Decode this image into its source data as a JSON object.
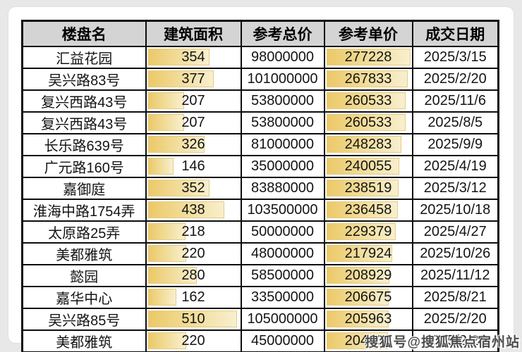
{
  "table": {
    "headers": [
      {
        "label": "楼盘名"
      },
      {
        "label": "建筑面积"
      },
      {
        "label": "参考总价"
      },
      {
        "label": "参考单价"
      },
      {
        "label": "成交日期"
      }
    ],
    "rows": [
      {
        "name": "汇益花园",
        "area": 354,
        "total_price": 98000000,
        "unit_price": 277228,
        "date": "2025/3/15"
      },
      {
        "name": "吴兴路83号",
        "area": 377,
        "total_price": 101000000,
        "unit_price": 267833,
        "date": "2025/2/20"
      },
      {
        "name": "复兴西路43号",
        "area": 207,
        "total_price": 53800000,
        "unit_price": 260533,
        "date": "2025/11/6"
      },
      {
        "name": "复兴西路43号",
        "area": 207,
        "total_price": 53800000,
        "unit_price": 260533,
        "date": "2025/8/5"
      },
      {
        "name": "长乐路639号",
        "area": 326,
        "total_price": 81000000,
        "unit_price": 248283,
        "date": "2025/9/9"
      },
      {
        "name": "广元路160号",
        "area": 146,
        "total_price": 35000000,
        "unit_price": 240055,
        "date": "2025/4/19"
      },
      {
        "name": "嘉御庭",
        "area": 352,
        "total_price": 83880000,
        "unit_price": 238519,
        "date": "2025/3/12"
      },
      {
        "name": "淮海中路1754弄",
        "area": 438,
        "total_price": 103500000,
        "unit_price": 236458,
        "date": "2025/10/18"
      },
      {
        "name": "太原路25弄",
        "area": 218,
        "total_price": 50000000,
        "unit_price": 229379,
        "date": "2025/4/27"
      },
      {
        "name": "美都雅筑",
        "area": 220,
        "total_price": 48000000,
        "unit_price": 217924,
        "date": "2025/10/26"
      },
      {
        "name": "懿园",
        "area": 280,
        "total_price": 58500000,
        "unit_price": 208929,
        "date": "2025/11/12"
      },
      {
        "name": "嘉华中心",
        "area": 162,
        "total_price": 33500000,
        "unit_price": 206675,
        "date": "2025/8/21"
      },
      {
        "name": "吴兴路85号",
        "area": 510,
        "total_price": 105000000,
        "unit_price": 205963,
        "date": "2025/2/20"
      },
      {
        "name": "美都雅筑",
        "area": 220,
        "total_price": 45000000,
        "unit_price": 204304,
        "date": "2025/2/28"
      }
    ]
  },
  "watermark": "搜狐号@搜狐焦点宿州站",
  "colors": {
    "page_background": "#e8e8e8",
    "card_background": "#ffffff",
    "header_background": "#d4d4d4",
    "grid_border": "#0d0d0d",
    "databar_start": "#ecc968",
    "databar_end": "#f8efce",
    "databar_border": "#e6cc81",
    "watermark_text": "#4d4d4d"
  }
}
